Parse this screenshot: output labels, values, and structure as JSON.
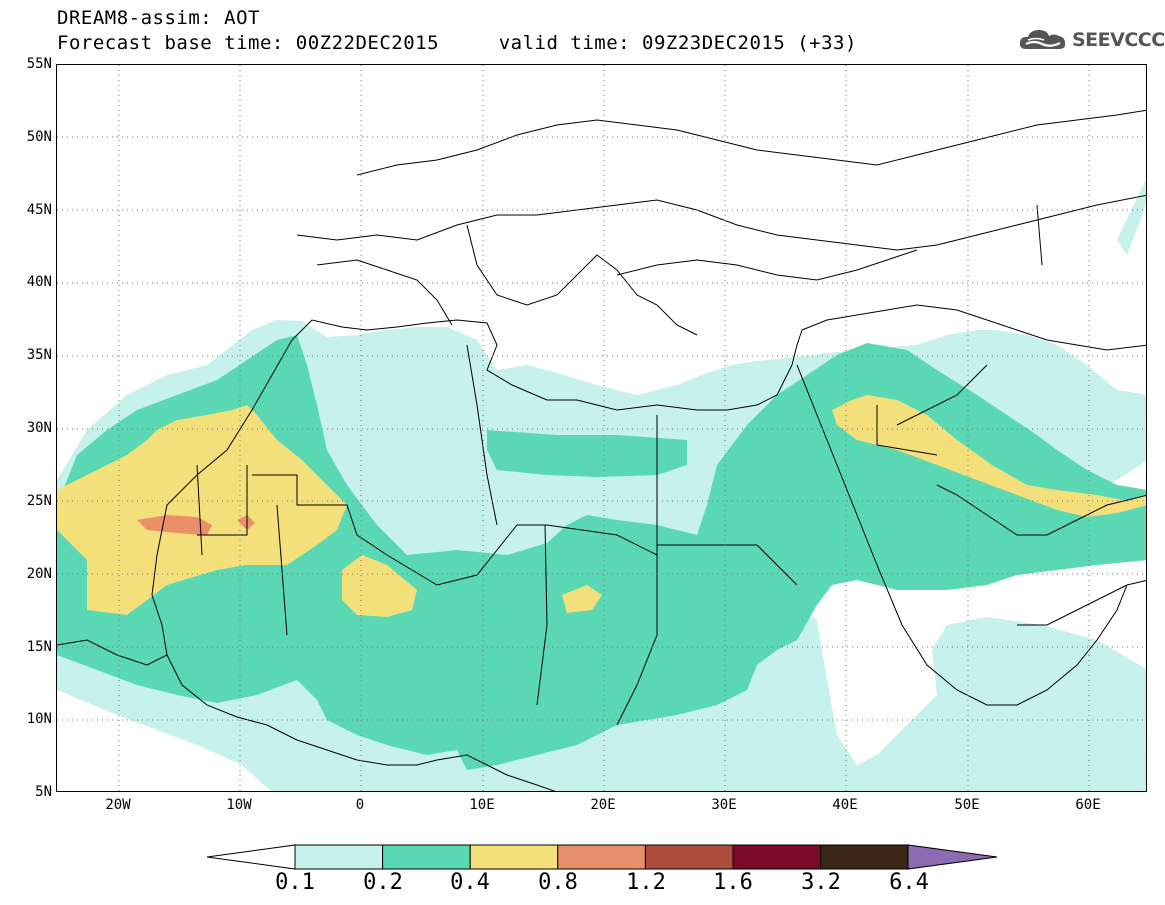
{
  "header": {
    "title_line1": "DREAM8-assim: AOT",
    "title_line2": "Forecast base time: 00Z22DEC2015     valid time: 09Z23DEC2015 (+33)"
  },
  "logo": {
    "text": "SEEVCCC",
    "icon": "cloud-icon"
  },
  "map": {
    "lat_labels": [
      "55N",
      "50N",
      "45N",
      "40N",
      "35N",
      "30N",
      "25N",
      "20N",
      "15N",
      "10N",
      "5N"
    ],
    "lon_labels": [
      "20W",
      "10W",
      "0",
      "10E",
      "20E",
      "30E",
      "40E",
      "50E",
      "60E"
    ],
    "colors": {
      "level_0_1": "#c6f1ec",
      "level_0_2": "#5ad8b4",
      "level_0_4": "#f3e07a",
      "level_0_8": "#e98f6a",
      "coast": "#000000"
    }
  },
  "colorbar": {
    "labels": [
      "0.1",
      "0.2",
      "0.4",
      "0.8",
      "1.2",
      "1.6",
      "3.2",
      "6.4"
    ],
    "colors": [
      "#c6f1ec",
      "#5ad8b4",
      "#f3e07a",
      "#e98f6a",
      "#ac4d3e",
      "#7a0a27",
      "#3b2618",
      "#8c6bb0"
    ]
  }
}
